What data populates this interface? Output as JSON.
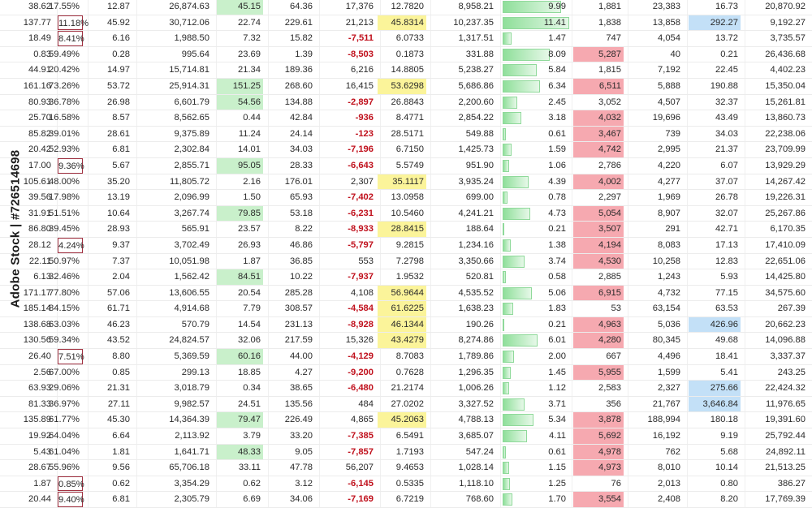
{
  "watermark": "Adobe Stock | #726514698",
  "rows": [
    [
      "38.62",
      "17.55%",
      "12.87",
      "26,874.63",
      "45.15",
      "64.36",
      "17,376",
      "12.7820",
      "8,958.21",
      "9.99",
      "1,881",
      "23,383",
      "16.73",
      "20,870.92"
    ],
    [
      "137.77",
      "11.18%",
      "45.92",
      "30,712.06",
      "22.74",
      "229.61",
      "21,213",
      "45.8314",
      "10,237.35",
      "11.41",
      "1,838",
      "13,858",
      "292.27",
      "9,192.27"
    ],
    [
      "18.49",
      "8.41%",
      "6.16",
      "1,988.50",
      "7.32",
      "15.82",
      "-7,511",
      "6.0733",
      "1,317.51",
      "1.47",
      "747",
      "4,054",
      "13.72",
      "3,735.57"
    ],
    [
      "0.83",
      "59.49%",
      "0.28",
      "995.64",
      "23.69",
      "1.39",
      "-8,503",
      "0.1873",
      "331.88",
      "8.09",
      "5,287",
      "40",
      "0.21",
      "26,436.68"
    ],
    [
      "44.91",
      "20.42%",
      "14.97",
      "15,714.81",
      "21.34",
      "189.36",
      "6,216",
      "14.8805",
      "5,238.27",
      "5.84",
      "1,815",
      "7,192",
      "22.45",
      "4,402.23"
    ],
    [
      "161.16",
      "73.26%",
      "53.72",
      "25,914.31",
      "151.25",
      "268.60",
      "16,415",
      "53.6298",
      "5,686.86",
      "6.34",
      "6,511",
      "5,888",
      "190.88",
      "15,350.04"
    ],
    [
      "80.93",
      "36.78%",
      "26.98",
      "6,601.79",
      "54.56",
      "134.88",
      "-2,897",
      "26.8843",
      "2,200.60",
      "2.45",
      "3,052",
      "4,507",
      "32.37",
      "15,261.81"
    ],
    [
      "25.70",
      "16.58%",
      "8.57",
      "8,562.65",
      "0.44",
      "42.84",
      "-936",
      "8.4771",
      "2,854.22",
      "3.18",
      "4,032",
      "19,696",
      "43.49",
      "13,860.73"
    ],
    [
      "85.82",
      "39.01%",
      "28.61",
      "9,375.89",
      "11.24",
      "24.14",
      "-123",
      "28.5171",
      "549.88",
      "0.61",
      "3,467",
      "739",
      "34.03",
      "22,238.06"
    ],
    [
      "20.42",
      "52.93%",
      "6.81",
      "2,302.84",
      "14.01",
      "34.03",
      "-7,196",
      "6.7150",
      "1,425.73",
      "1.59",
      "4,742",
      "2,995",
      "21.37",
      "23,709.99"
    ],
    [
      "17.00",
      "9.36%",
      "5.67",
      "2,855.71",
      "95.05",
      "28.33",
      "-6,643",
      "5.5749",
      "951.90",
      "1.06",
      "2,786",
      "4,220",
      "6.07",
      "13,929.29"
    ],
    [
      "105.61",
      "48.00%",
      "35.20",
      "11,805.72",
      "2.16",
      "176.01",
      "2,307",
      "35.1117",
      "3,935.24",
      "4.39",
      "4,002",
      "4,277",
      "37.07",
      "14,267.42"
    ],
    [
      "39.56",
      "17.98%",
      "13.19",
      "2,096.99",
      "1.50",
      "65.93",
      "-7,402",
      "13.0958",
      "699.00",
      "0.78",
      "2,297",
      "1,969",
      "26.78",
      "19,226.31"
    ],
    [
      "31.91",
      "51.51%",
      "10.64",
      "3,267.74",
      "79.85",
      "53.18",
      "-6,231",
      "10.5460",
      "4,241.21",
      "4.73",
      "5,054",
      "8,907",
      "32.07",
      "25,267.86"
    ],
    [
      "86.80",
      "39.45%",
      "28.93",
      "565.91",
      "23.57",
      "8.22",
      "-8,933",
      "28.8415",
      "188.64",
      "0.21",
      "3,507",
      "291",
      "42.71",
      "6,170.35"
    ],
    [
      "28.12",
      "4.24%",
      "9.37",
      "3,702.49",
      "26.93",
      "46.86",
      "-5,797",
      "9.2815",
      "1,234.16",
      "1.38",
      "4,194",
      "8,083",
      "17.13",
      "17,410.09"
    ],
    [
      "22.11",
      "50.97%",
      "7.37",
      "10,051.98",
      "1.87",
      "36.85",
      "553",
      "7.2798",
      "3,350.66",
      "3.74",
      "4,530",
      "10,258",
      "12.83",
      "22,651.06"
    ],
    [
      "6.13",
      "32.46%",
      "2.04",
      "1,562.42",
      "84.51",
      "10.22",
      "-7,937",
      "1.9532",
      "520.81",
      "0.58",
      "2,885",
      "1,243",
      "5.93",
      "14,425.80"
    ],
    [
      "171.17",
      "77.80%",
      "57.06",
      "13,606.55",
      "20.54",
      "285.28",
      "4,108",
      "56.9644",
      "4,535.52",
      "5.06",
      "6,915",
      "4,732",
      "77.15",
      "34,575.60"
    ],
    [
      "185.14",
      "84.15%",
      "61.71",
      "4,914.68",
      "7.79",
      "308.57",
      "-4,584",
      "61.6225",
      "1,638.23",
      "1.83",
      "53",
      "63,154",
      "63.53",
      "267.39"
    ],
    [
      "138.68",
      "63.03%",
      "46.23",
      "570.79",
      "14.54",
      "231.13",
      "-8,928",
      "46.1344",
      "190.26",
      "0.21",
      "4,963",
      "5,036",
      "426.96",
      "20,662.23"
    ],
    [
      "130.56",
      "59.34%",
      "43.52",
      "24,824.57",
      "32.06",
      "217.59",
      "15,326",
      "43.4279",
      "8,274.86",
      "6.01",
      "4,280",
      "80,345",
      "49.68",
      "14,096.88"
    ],
    [
      "26.40",
      "7.51%",
      "8.80",
      "5,369.59",
      "60.16",
      "44.00",
      "-4,129",
      "8.7083",
      "1,789.86",
      "2.00",
      "667",
      "4,496",
      "18.41",
      "3,337.37"
    ],
    [
      "2.56",
      "67.00%",
      "0.85",
      "299.13",
      "18.85",
      "4.27",
      "-9,200",
      "0.7628",
      "1,296.35",
      "1.45",
      "5,955",
      "1,599",
      "5.41",
      "243.25"
    ],
    [
      "63.93",
      "29.06%",
      "21.31",
      "3,018.79",
      "0.34",
      "38.65",
      "-6,480",
      "21.2174",
      "1,006.26",
      "1.12",
      "2,583",
      "2,327",
      "275.66",
      "22,424.32"
    ],
    [
      "81.33",
      "36.97%",
      "27.11",
      "9,982.57",
      "24.51",
      "135.56",
      "484",
      "27.0202",
      "3,327.52",
      "3.71",
      "356",
      "21,767",
      "3,646.84",
      "11,976.65"
    ],
    [
      "135.89",
      "61.77%",
      "45.30",
      "14,364.39",
      "79.47",
      "226.49",
      "4,865",
      "45.2063",
      "4,788.13",
      "5.34",
      "3,878",
      "188,994",
      "180.18",
      "19,391.60"
    ],
    [
      "19.92",
      "64.04%",
      "6.64",
      "2,113.92",
      "3.79",
      "33.20",
      "-7,385",
      "6.5491",
      "3,685.07",
      "4.11",
      "5,692",
      "16,192",
      "9.19",
      "25,792.44"
    ],
    [
      "5.43",
      "61.04%",
      "1.81",
      "1,641.71",
      "48.33",
      "9.05",
      "-7,857",
      "1.7193",
      "547.24",
      "0.61",
      "4,978",
      "762",
      "5.68",
      "24,892.11"
    ],
    [
      "28.67",
      "55.96%",
      "9.56",
      "65,706.18",
      "33.11",
      "47.78",
      "56,207",
      "9.4653",
      "1,028.14",
      "1.15",
      "4,973",
      "8,010",
      "10.14",
      "21,513.25"
    ],
    [
      "1.87",
      "0.85%",
      "0.62",
      "3,354.29",
      "0.62",
      "3.12",
      "-6,145",
      "0.5335",
      "1,118.10",
      "1.25",
      "76",
      "2,013",
      "0.80",
      "386.27"
    ],
    [
      "20.44",
      "9.40%",
      "6.81",
      "2,305.79",
      "6.69",
      "34.06",
      "-7,169",
      "6.7219",
      "768.60",
      "1.70",
      "3,554",
      "2,408",
      "8.20",
      "17,769.39"
    ]
  ],
  "highlights": {
    "green_col4_rows": [
      0,
      5,
      6,
      10,
      13,
      17,
      22,
      26,
      28
    ],
    "yellow_col7_rows": [
      1,
      5,
      11,
      14,
      18,
      19,
      20,
      21,
      26
    ],
    "red_col10_rows": [
      3,
      5,
      7,
      8,
      9,
      11,
      13,
      14,
      15,
      16,
      18,
      20,
      21,
      23,
      26,
      27,
      28,
      29,
      31
    ],
    "blue_col12_rows": [
      1,
      20,
      24,
      25
    ],
    "boxed_col1_rows": [
      1,
      2,
      10,
      15,
      22,
      30,
      31
    ]
  },
  "bar_max": 11.41,
  "colors": {
    "negative": "#c0101c",
    "green_fill": "#c9f0cb",
    "yellow_fill": "#fbf49a",
    "red_fill": "#f6a9b0",
    "blue_fill": "#c3e0f7",
    "bar_green": "#8fdf9a"
  }
}
